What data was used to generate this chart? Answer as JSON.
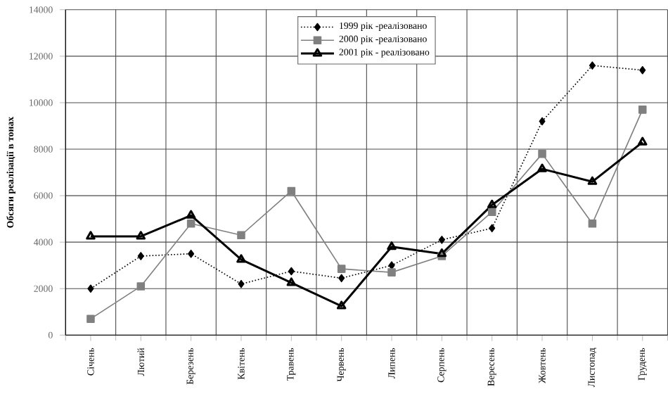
{
  "chart_data": {
    "type": "line",
    "ylabel": "Обсяги реалізації в тонах",
    "categories": [
      "Січень",
      "Лютий",
      "Березень",
      "Квітень",
      "Травень",
      "Червень",
      "Липень",
      "Серпень",
      "Вересень",
      "Жовтень",
      "Листопад",
      "Грудень"
    ],
    "series": [
      {
        "name": "1999 рік -реалізовано",
        "color": "#000000",
        "marker": "diamond",
        "line_style": "dotted",
        "values": [
          2000,
          3400,
          3500,
          2200,
          2750,
          2450,
          3000,
          4100,
          4600,
          9200,
          11600,
          11400
        ]
      },
      {
        "name": "2000 рік -реалізовано",
        "color": "#808080",
        "marker": "square",
        "line_style": "solid",
        "values": [
          700,
          2100,
          4800,
          4300,
          6200,
          2850,
          2700,
          3400,
          5300,
          7800,
          4800,
          9700
        ]
      },
      {
        "name": "2001 рік - реалізовано",
        "color": "#000000",
        "marker": "triangle",
        "line_style": "solid",
        "values": [
          4250,
          4250,
          5150,
          3250,
          2250,
          1250,
          3800,
          3500,
          5600,
          7150,
          6600,
          8300
        ]
      }
    ],
    "ylim": [
      0,
      14000
    ],
    "yticks": [
      0,
      2000,
      4000,
      6000,
      8000,
      10000,
      12000,
      14000
    ],
    "grid": true,
    "legend": "top"
  }
}
